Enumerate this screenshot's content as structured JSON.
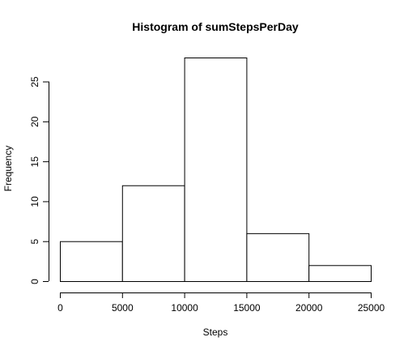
{
  "chart_data": {
    "type": "bar",
    "title": "Histogram of sumStepsPerDay",
    "xlabel": "Steps",
    "ylabel": "Frequency",
    "bins": [
      {
        "from": 0,
        "to": 5000,
        "count": 5
      },
      {
        "from": 5000,
        "to": 10000,
        "count": 12
      },
      {
        "from": 10000,
        "to": 15000,
        "count": 28
      },
      {
        "from": 15000,
        "to": 20000,
        "count": 6
      },
      {
        "from": 20000,
        "to": 25000,
        "count": 2
      }
    ],
    "xlim": [
      0,
      25000
    ],
    "ylim": [
      0,
      28
    ],
    "x_ticks": [
      "0",
      "5000",
      "10000",
      "15000",
      "20000",
      "25000"
    ],
    "y_ticks": [
      "0",
      "5",
      "10",
      "15",
      "20",
      "25"
    ],
    "x_tick_values": [
      0,
      5000,
      10000,
      15000,
      20000,
      25000
    ],
    "y_tick_values": [
      0,
      5,
      10,
      15,
      20,
      25
    ],
    "grid": false,
    "bar_fill": "#ffffff",
    "bar_stroke": "#000000"
  }
}
